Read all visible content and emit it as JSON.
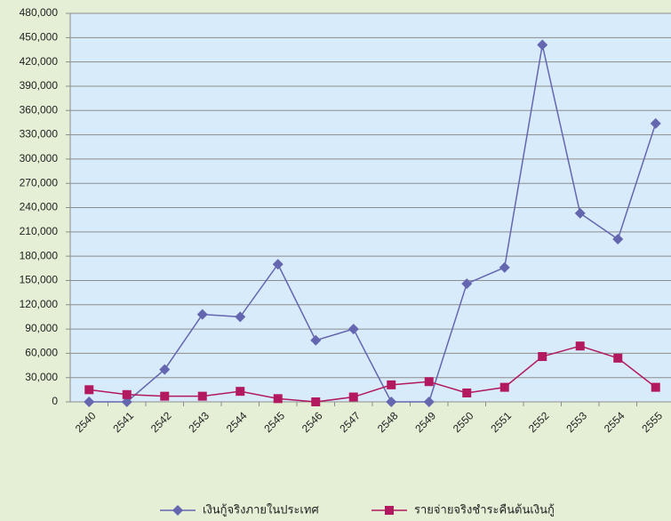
{
  "chart_data": {
    "type": "line",
    "categories": [
      "2540",
      "2541",
      "2542",
      "2543",
      "2544",
      "2545",
      "2546",
      "2547",
      "2548",
      "2549",
      "2550",
      "2551",
      "2552",
      "2553",
      "2554",
      "2555"
    ],
    "series": [
      {
        "name": "เงินกู้จริงภายในประเทศ",
        "color": "#6466b0",
        "marker": "diamond",
        "values": [
          0,
          0,
          40000,
          108000,
          105000,
          170000,
          76000,
          90000,
          0,
          0,
          146000,
          166000,
          441000,
          233000,
          201000,
          344000
        ]
      },
      {
        "name": "รายจ่ายจริงชำระคืนต้นเงินกู้",
        "color": "#b2195e",
        "marker": "square",
        "values": [
          15000,
          9000,
          7000,
          7000,
          13000,
          4000,
          0,
          6000,
          21000,
          25000,
          11000,
          18000,
          56000,
          69000,
          54000,
          18000
        ]
      }
    ],
    "ylim": [
      0,
      480000
    ],
    "yticks": [
      0,
      {
        "value": 30000,
        "label": "30,000"
      },
      {
        "value": 60000,
        "label": "60,000"
      },
      {
        "value": 90000,
        "label": "90,000"
      },
      {
        "value": 120000,
        "label": "120,000"
      },
      {
        "value": 150000,
        "label": "150,000"
      },
      {
        "value": 180000,
        "label": "180,000"
      },
      {
        "value": 210000,
        "label": "210,000"
      },
      {
        "value": 240000,
        "label": "240,000"
      },
      {
        "value": 270000,
        "label": "270,000"
      },
      {
        "value": 300000,
        "label": "300,000"
      },
      {
        "value": 330000,
        "label": "330,000"
      },
      {
        "value": 360000,
        "label": "360,000"
      },
      {
        "value": 390000,
        "label": "390,000"
      },
      {
        "value": 420000,
        "label": "420,000"
      },
      {
        "value": 450000,
        "label": "450,000"
      },
      {
        "value": 480000,
        "label": "480,000"
      }
    ],
    "grid": true,
    "legend": "bottom"
  }
}
